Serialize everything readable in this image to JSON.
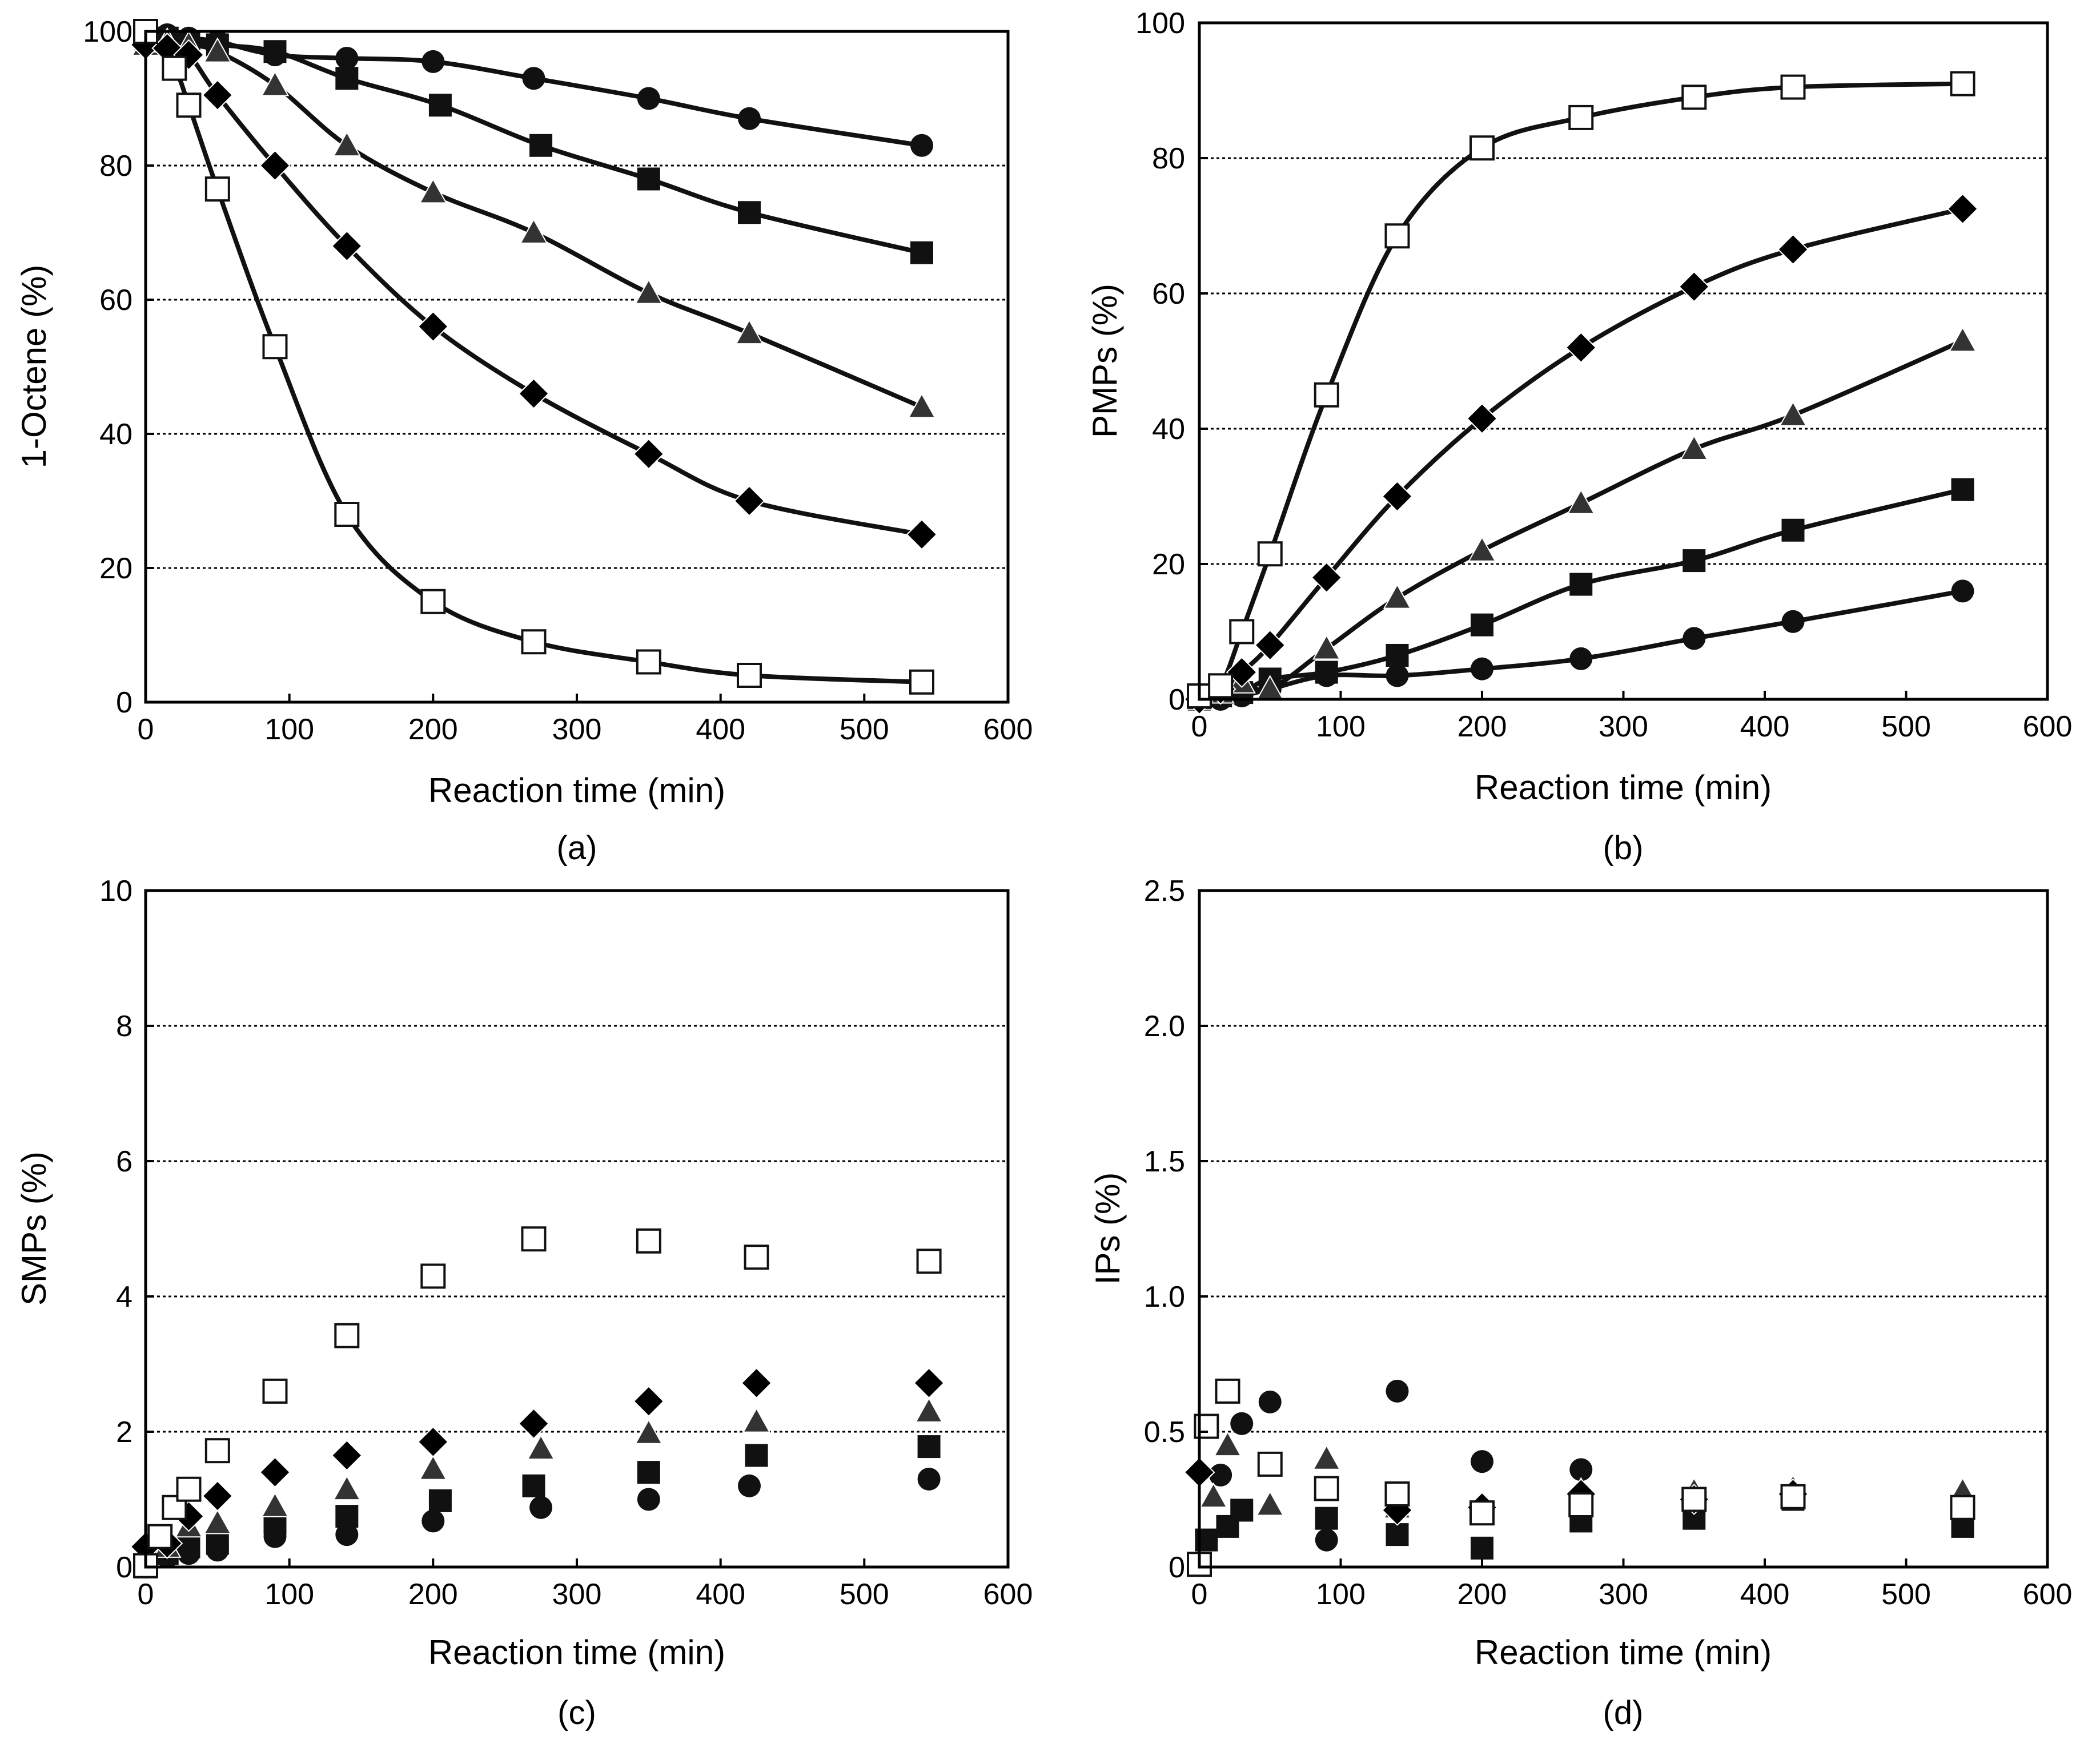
{
  "chart_data": [
    {
      "panel": "(a)",
      "type": "scatter",
      "xlabel": "Reaction time (min)",
      "ylabel": "1-Octene (%)",
      "xlim": [
        0,
        600
      ],
      "ylim": [
        0,
        100
      ],
      "xticks": [
        0,
        100,
        200,
        300,
        400,
        500,
        600
      ],
      "yticks": [
        0,
        20,
        40,
        60,
        80,
        100
      ],
      "grid": "horizontal dotted",
      "fitted_curves": true,
      "series": [
        {
          "name": "circle",
          "marker": "circle",
          "x": [
            0,
            15,
            30,
            50,
            90,
            140,
            200,
            270,
            350,
            420,
            540
          ],
          "y": [
            99,
            99.5,
            99,
            98.5,
            96.5,
            96,
            95.5,
            93,
            90,
            87,
            83
          ]
        },
        {
          "name": "square",
          "marker": "square",
          "x": [
            0,
            15,
            30,
            50,
            90,
            140,
            205,
            275,
            350,
            420,
            540
          ],
          "y": [
            99,
            99,
            98.5,
            98,
            97,
            93,
            89,
            83,
            78,
            73,
            67
          ]
        },
        {
          "name": "triangle",
          "marker": "triangle",
          "x": [
            0,
            15,
            30,
            50,
            90,
            140,
            200,
            270,
            350,
            420,
            540
          ],
          "y": [
            98,
            98.5,
            98,
            97,
            92,
            83,
            76,
            70,
            61,
            55,
            44
          ]
        },
        {
          "name": "diamond",
          "marker": "diamond",
          "x": [
            0,
            15,
            30,
            50,
            90,
            140,
            200,
            270,
            350,
            420,
            540
          ],
          "y": [
            98,
            97.5,
            96.5,
            90.5,
            80,
            68,
            56,
            46,
            37,
            30,
            25
          ]
        },
        {
          "name": "open-square",
          "marker": "open-square",
          "x": [
            0,
            20,
            30,
            50,
            90,
            140,
            200,
            270,
            350,
            420,
            540
          ],
          "y": [
            100,
            94.5,
            89,
            76.5,
            53,
            28,
            15,
            9,
            6,
            4,
            3
          ]
        }
      ]
    },
    {
      "panel": "(b)",
      "type": "scatter",
      "xlabel": "Reaction time (min)",
      "ylabel": "PMPs (%)",
      "xlim": [
        0,
        600
      ],
      "ylim": [
        0,
        100
      ],
      "xticks": [
        0,
        100,
        200,
        300,
        400,
        500,
        600
      ],
      "yticks": [
        0,
        20,
        40,
        60,
        80,
        100
      ],
      "grid": "horizontal dotted",
      "fitted_curves": true,
      "series": [
        {
          "name": "circle",
          "marker": "circle",
          "x": [
            0,
            15,
            30,
            50,
            90,
            140,
            200,
            270,
            350,
            420,
            540
          ],
          "y": [
            0,
            0,
            0.5,
            1.5,
            3.5,
            3.5,
            4.5,
            6,
            9,
            11.5,
            16
          ]
        },
        {
          "name": "square",
          "marker": "square",
          "x": [
            0,
            15,
            30,
            50,
            90,
            140,
            200,
            270,
            350,
            420,
            540
          ],
          "y": [
            0,
            0.5,
            1,
            3,
            4,
            6.5,
            11,
            17,
            20.5,
            25,
            31
          ]
        },
        {
          "name": "triangle",
          "marker": "triangle",
          "x": [
            0,
            15,
            30,
            50,
            90,
            140,
            200,
            270,
            350,
            420,
            540
          ],
          "y": [
            0,
            1,
            2.5,
            1.5,
            7.5,
            15,
            22,
            29,
            37,
            42,
            53
          ]
        },
        {
          "name": "diamond",
          "marker": "diamond",
          "x": [
            0,
            15,
            30,
            50,
            90,
            140,
            200,
            270,
            350,
            420,
            540
          ],
          "y": [
            0,
            1.5,
            4,
            8,
            18,
            30,
            41.5,
            52,
            61,
            66.5,
            72.5
          ]
        },
        {
          "name": "open-square",
          "marker": "open-square",
          "x": [
            0,
            15,
            30,
            50,
            90,
            140,
            200,
            270,
            350,
            420,
            540
          ],
          "y": [
            0.5,
            2,
            10,
            21.5,
            45,
            68.5,
            81.5,
            86,
            89,
            90.5,
            91
          ]
        }
      ]
    },
    {
      "panel": "(c)",
      "type": "scatter",
      "xlabel": "Reaction time (min)",
      "ylabel": "SMPs (%)",
      "xlim": [
        0,
        600
      ],
      "ylim": [
        0,
        10
      ],
      "xticks": [
        0,
        100,
        200,
        300,
        400,
        500,
        600
      ],
      "yticks": [
        0,
        2,
        4,
        6,
        8,
        10
      ],
      "grid": "horizontal dotted",
      "fitted_curves": false,
      "series": [
        {
          "name": "circle",
          "marker": "circle",
          "x": [
            0,
            15,
            30,
            50,
            90,
            140,
            200,
            275,
            350,
            420,
            545
          ],
          "y": [
            0,
            0.15,
            0.2,
            0.25,
            0.45,
            0.48,
            0.68,
            0.88,
            1.0,
            1.2,
            1.3
          ]
        },
        {
          "name": "square",
          "marker": "square",
          "x": [
            0,
            15,
            30,
            50,
            90,
            140,
            205,
            270,
            350,
            425,
            545
          ],
          "y": [
            0,
            0.2,
            0.3,
            0.35,
            0.65,
            0.75,
            0.98,
            1.2,
            1.4,
            1.65,
            1.78
          ]
        },
        {
          "name": "triangle",
          "marker": "triangle",
          "x": [
            0,
            15,
            30,
            50,
            90,
            140,
            200,
            275,
            350,
            425,
            545
          ],
          "y": [
            0,
            0.3,
            0.6,
            0.65,
            0.9,
            1.15,
            1.45,
            1.75,
            1.98,
            2.15,
            2.3
          ]
        },
        {
          "name": "diamond",
          "marker": "diamond",
          "x": [
            0,
            15,
            30,
            50,
            90,
            140,
            200,
            270,
            350,
            425,
            545
          ],
          "y": [
            0.3,
            0.35,
            0.75,
            1.05,
            1.4,
            1.65,
            1.85,
            2.12,
            2.45,
            2.72,
            2.72
          ]
        },
        {
          "name": "open-square",
          "marker": "open-square",
          "x": [
            0,
            10,
            20,
            30,
            50,
            90,
            140,
            200,
            270,
            350,
            425,
            545
          ],
          "y": [
            0.02,
            0.45,
            0.88,
            1.15,
            1.72,
            2.6,
            3.42,
            4.3,
            4.85,
            4.82,
            4.58,
            4.52
          ]
        }
      ]
    },
    {
      "panel": "(d)",
      "type": "scatter",
      "xlabel": "Reaction time (min)",
      "ylabel": "IPs (%)",
      "xlim": [
        0,
        600
      ],
      "ylim": [
        0,
        2.5
      ],
      "xticks": [
        0,
        100,
        200,
        300,
        400,
        500,
        600
      ],
      "yticks": [
        "0",
        "0.5",
        "1.0",
        "1.5",
        "2.0",
        "2.5"
      ],
      "grid": "horizontal dotted",
      "fitted_curves": false,
      "series": [
        {
          "name": "circle",
          "marker": "circle",
          "x": [
            15,
            30,
            50,
            90,
            140,
            200,
            270,
            350,
            420,
            540
          ],
          "y": [
            0.34,
            0.53,
            0.61,
            0.1,
            0.65,
            0.39,
            0.36,
            0.2,
            0.25,
            0.17
          ]
        },
        {
          "name": "square",
          "marker": "square",
          "x": [
            5,
            20,
            30,
            90,
            140,
            200,
            270,
            350,
            420,
            540
          ],
          "y": [
            0.1,
            0.15,
            0.21,
            0.18,
            0.12,
            0.07,
            0.17,
            0.18,
            0.25,
            0.15
          ]
        },
        {
          "name": "triangle",
          "marker": "triangle",
          "x": [
            10,
            20,
            50,
            90,
            140,
            200,
            270,
            350,
            420,
            540
          ],
          "y": [
            0.26,
            0.45,
            0.23,
            0.4,
            0.22,
            0.22,
            0.28,
            0.28,
            0.29,
            0.28
          ]
        },
        {
          "name": "diamond",
          "marker": "diamond",
          "x": [
            0,
            140,
            200,
            270,
            350,
            420
          ],
          "y": [
            0.35,
            0.21,
            0.22,
            0.27,
            0.25,
            0.27
          ]
        },
        {
          "name": "open-square",
          "marker": "open-square",
          "x": [
            0,
            5,
            20,
            50,
            90,
            140,
            200,
            270,
            350,
            420,
            540
          ],
          "y": [
            0.01,
            0.52,
            0.65,
            0.38,
            0.29,
            0.27,
            0.2,
            0.23,
            0.25,
            0.26,
            0.22
          ]
        }
      ]
    }
  ]
}
